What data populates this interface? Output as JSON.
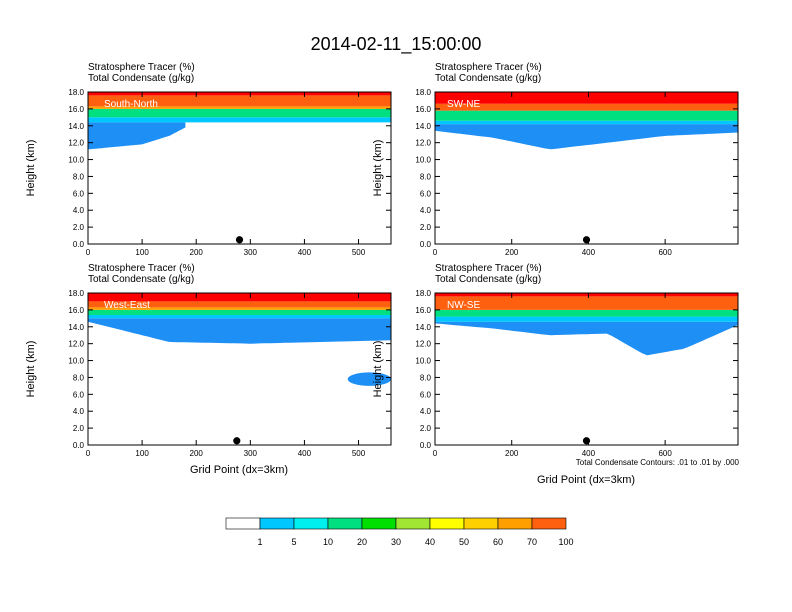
{
  "title": "2014-02-11_15:00:00",
  "colors": {
    "levels": [
      "#ffffff",
      "#1e8ff5",
      "#00c8ff",
      "#00f0f0",
      "#00e080",
      "#00e000",
      "#a0e632",
      "#ffff00",
      "#ffd000",
      "#ffa000",
      "#ff6010",
      "#ff0000"
    ],
    "axis": "#000000",
    "contour": "#000000"
  },
  "colorbar": {
    "labels": [
      "1",
      "5",
      "10",
      "20",
      "30",
      "40",
      "50",
      "60",
      "70",
      "100"
    ]
  },
  "contour_note": "Total Condensate Contours: .01 to .01 by .000",
  "chart_data": [
    {
      "type": "heatmap",
      "name": "South-North",
      "title_lines": [
        "Stratosphere Tracer   (%)",
        "Total Condensate   (g/kg)"
      ],
      "panel_label": "South-North",
      "ylabel": "Height (km)",
      "xlabel": "",
      "xlim": [
        0,
        560
      ],
      "ylim": [
        0,
        18
      ],
      "xticks": [
        0,
        100,
        200,
        300,
        400,
        500
      ],
      "xtick_labels": [
        "0",
        "100",
        "200",
        "300",
        "400",
        "500"
      ],
      "yticks": [
        0,
        2,
        4,
        6,
        8,
        10,
        12,
        14,
        16,
        18
      ],
      "ytick_labels": [
        "0.0",
        "2.0",
        "4.0",
        "6.0",
        "8.0",
        "10.0",
        "12.0",
        "14.0",
        "16.0",
        "18.0"
      ],
      "marker_x": 280,
      "bands": [
        {
          "level": 11,
          "x": [
            0,
            560
          ],
          "top": [
            18,
            18
          ],
          "bot": [
            17.6,
            17.6
          ]
        },
        {
          "level": 10,
          "x": [
            0,
            560
          ],
          "top": [
            17.6,
            17.6
          ],
          "bot": [
            16.3,
            16.3
          ]
        },
        {
          "level": 9,
          "x": [
            0,
            560
          ],
          "top": [
            16.3,
            16.3
          ],
          "bot": [
            16.0,
            16.0
          ]
        },
        {
          "level": 4,
          "x": [
            0,
            560
          ],
          "top": [
            16.0,
            16.0
          ],
          "bot": [
            15.0,
            15.0
          ]
        },
        {
          "level": 2,
          "x": [
            0,
            560
          ],
          "top": [
            15.0,
            15.0
          ],
          "bot": [
            14.4,
            14.4
          ]
        },
        {
          "level": 1,
          "x": [
            0,
            100,
            150,
            180
          ],
          "top": [
            14.4,
            14.4,
            14.4,
            14.4
          ],
          "bot": [
            11.2,
            11.8,
            12.8,
            13.8
          ]
        }
      ],
      "blobs": []
    },
    {
      "type": "heatmap",
      "name": "SW-NE",
      "title_lines": [
        "Stratosphere Tracer   (%)",
        "Total Condensate   (g/kg)"
      ],
      "panel_label": "SW-NE",
      "ylabel": "Height (km)",
      "xlabel": "",
      "xlim": [
        0,
        790
      ],
      "ylim": [
        0,
        18
      ],
      "xticks": [
        0,
        200,
        400,
        600
      ],
      "xtick_labels": [
        "0",
        "200",
        "400",
        "600"
      ],
      "yticks": [
        0,
        2,
        4,
        6,
        8,
        10,
        12,
        14,
        16,
        18
      ],
      "ytick_labels": [
        "0.0",
        "2.0",
        "4.0",
        "6.0",
        "8.0",
        "10.0",
        "12.0",
        "14.0",
        "16.0",
        "18.0"
      ],
      "marker_x": 395,
      "bands": [
        {
          "level": 11,
          "x": [
            0,
            790
          ],
          "top": [
            18,
            18
          ],
          "bot": [
            16.6,
            16.6
          ]
        },
        {
          "level": 10,
          "x": [
            0,
            790
          ],
          "top": [
            16.6,
            16.6
          ],
          "bot": [
            15.8,
            15.8
          ]
        },
        {
          "level": 4,
          "x": [
            0,
            790
          ],
          "top": [
            15.8,
            15.8
          ],
          "bot": [
            14.6,
            14.6
          ]
        },
        {
          "level": 2,
          "x": [
            0,
            790
          ],
          "top": [
            14.6,
            14.6
          ],
          "bot": [
            14.2,
            14.2
          ]
        },
        {
          "level": 1,
          "x": [
            0,
            150,
            300,
            450,
            600,
            790
          ],
          "top": [
            14.2,
            14.2,
            14.2,
            14.2,
            14.2,
            14.2
          ],
          "bot": [
            13.4,
            12.6,
            11.2,
            12.0,
            12.8,
            13.2
          ]
        }
      ],
      "blobs": []
    },
    {
      "type": "heatmap",
      "name": "West-East",
      "title_lines": [
        "Stratosphere Tracer   (%)",
        "Total Condensate   (g/kg)"
      ],
      "panel_label": "West-East",
      "ylabel": "Height (km)",
      "xlabel": "Grid Point (dx=3km)",
      "xlim": [
        0,
        560
      ],
      "ylim": [
        0,
        18
      ],
      "xticks": [
        0,
        100,
        200,
        300,
        400,
        500
      ],
      "xtick_labels": [
        "0",
        "100",
        "200",
        "300",
        "400",
        "500"
      ],
      "yticks": [
        0,
        2,
        4,
        6,
        8,
        10,
        12,
        14,
        16,
        18
      ],
      "ytick_labels": [
        "0.0",
        "2.0",
        "4.0",
        "6.0",
        "8.0",
        "10.0",
        "12.0",
        "14.0",
        "16.0",
        "18.0"
      ],
      "marker_x": 275,
      "bands": [
        {
          "level": 11,
          "x": [
            0,
            560
          ],
          "top": [
            18,
            18
          ],
          "bot": [
            17.0,
            17.0
          ]
        },
        {
          "level": 10,
          "x": [
            0,
            560
          ],
          "top": [
            17.0,
            17.0
          ],
          "bot": [
            16.3,
            16.3
          ]
        },
        {
          "level": 9,
          "x": [
            0,
            560
          ],
          "top": [
            16.3,
            16.3
          ],
          "bot": [
            16.0,
            16.0
          ]
        },
        {
          "level": 4,
          "x": [
            0,
            560
          ],
          "top": [
            16.0,
            16.0
          ],
          "bot": [
            15.4,
            15.4
          ]
        },
        {
          "level": 2,
          "x": [
            0,
            560
          ],
          "top": [
            15.4,
            15.4
          ],
          "bot": [
            15.0,
            15.0
          ]
        },
        {
          "level": 1,
          "x": [
            0,
            150,
            300,
            560
          ],
          "top": [
            15.0,
            15.0,
            15.0,
            15.0
          ],
          "bot": [
            14.6,
            12.2,
            12.0,
            12.4
          ]
        }
      ],
      "blobs": [
        {
          "level": 1,
          "cx": 520,
          "cy": 7.8,
          "rx": 40,
          "ry": 0.8
        }
      ]
    },
    {
      "type": "heatmap",
      "name": "NW-SE",
      "title_lines": [
        "Stratosphere Tracer   (%)",
        "Total Condensate   (g/kg)"
      ],
      "panel_label": "NW-SE",
      "ylabel": "Height (km)",
      "xlabel": "Grid Point (dx=3km)",
      "xlim": [
        0,
        790
      ],
      "ylim": [
        0,
        18
      ],
      "xticks": [
        0,
        200,
        400,
        600
      ],
      "xtick_labels": [
        "0",
        "200",
        "400",
        "600"
      ],
      "yticks": [
        0,
        2,
        4,
        6,
        8,
        10,
        12,
        14,
        16,
        18
      ],
      "ytick_labels": [
        "0.0",
        "2.0",
        "4.0",
        "6.0",
        "8.0",
        "10.0",
        "12.0",
        "14.0",
        "16.0",
        "18.0"
      ],
      "marker_x": 395,
      "bands": [
        {
          "level": 11,
          "x": [
            0,
            790
          ],
          "top": [
            18,
            18
          ],
          "bot": [
            17.6,
            17.6
          ]
        },
        {
          "level": 10,
          "x": [
            0,
            790
          ],
          "top": [
            17.6,
            17.6
          ],
          "bot": [
            16.0,
            16.0
          ]
        },
        {
          "level": 4,
          "x": [
            0,
            790
          ],
          "top": [
            16.0,
            16.0
          ],
          "bot": [
            15.2,
            15.2
          ]
        },
        {
          "level": 2,
          "x": [
            0,
            790
          ],
          "top": [
            15.2,
            15.2
          ],
          "bot": [
            14.6,
            14.6
          ]
        },
        {
          "level": 1,
          "x": [
            0,
            150,
            300,
            450,
            550,
            650,
            790
          ],
          "top": [
            14.6,
            14.6,
            14.6,
            14.6,
            14.6,
            14.6,
            14.6
          ],
          "bot": [
            14.4,
            13.8,
            13.0,
            13.2,
            10.6,
            11.4,
            14.2
          ]
        }
      ],
      "blobs": []
    }
  ]
}
